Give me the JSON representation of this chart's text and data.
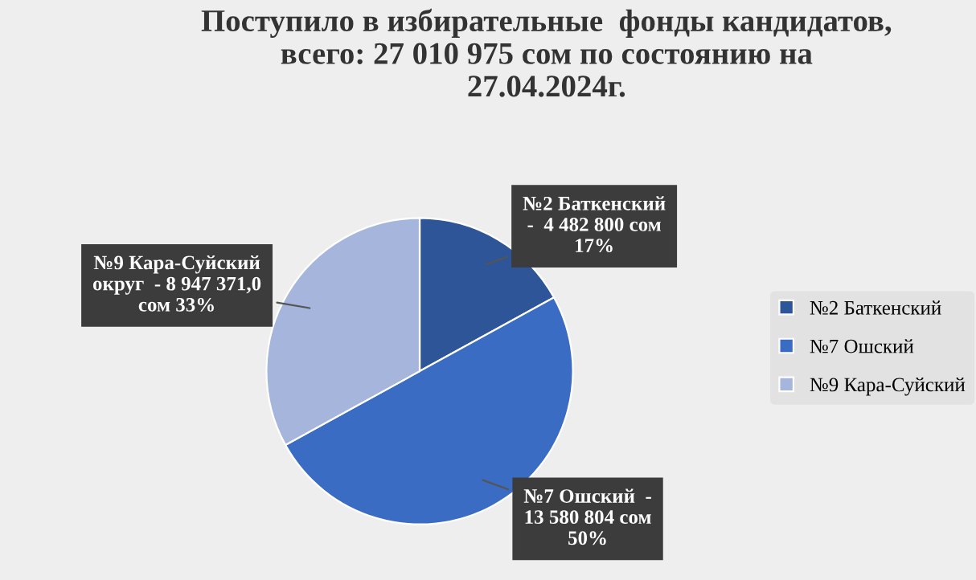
{
  "chart_data": {
    "type": "pie",
    "title": "Поступило в избирательные  фонды кандидатов,\nвсего: 27 010 975 сом по состоянию на\n27.04.2024г.",
    "categories": [
      "№2 Баткенский",
      "№7 Ошский",
      "№9 Кара-Суйский"
    ],
    "values": [
      17,
      50,
      33
    ],
    "colors": [
      "#2e5597",
      "#3a6cc4",
      "#a6b5dc"
    ],
    "value_labels": [
      "№2 Баткенский\n-  4 482 800 сом\n17%",
      "№7 Ошский  -\n13 580 804 сом\n50%",
      "№9 Кара-Суйский\nокруг  - 8 947 371,0\nсом 33%"
    ],
    "legend": "right"
  }
}
